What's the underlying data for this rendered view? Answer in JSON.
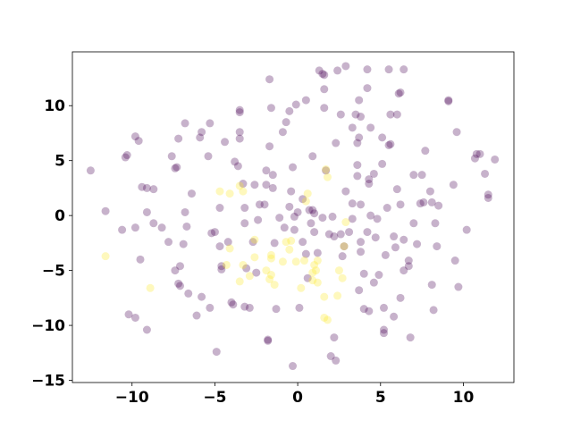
{
  "chart_data": {
    "type": "scatter",
    "xlim": [
      -13.6,
      13.05
    ],
    "ylim": [
      -15.2,
      14.9
    ],
    "xticks": [
      {
        "value": -10,
        "label": "−10"
      },
      {
        "value": -5,
        "label": "−5"
      },
      0,
      5,
      10
    ],
    "yticks": [
      {
        "value": -15,
        "label": "−15"
      },
      {
        "value": -10,
        "label": "−10"
      },
      {
        "value": -5,
        "label": "−5"
      },
      0,
      5,
      10
    ],
    "grid": false,
    "opacity": 0.3,
    "series": [
      {
        "color": "#440154",
        "x": [
          -12.5,
          -11.6,
          -10.6,
          -10.4,
          -10.3,
          -10.2,
          -9.8,
          -9.8,
          -9.8,
          -9.6,
          -9.5,
          -9.4,
          -9.1,
          -9.1,
          -9.1,
          -8.7,
          -8.7,
          -8.2,
          -7.8,
          -7.6,
          -7.4,
          -7.4,
          -7.3,
          -7.2,
          -7.1,
          -7.1,
          -7.2,
          -6.9,
          -6.8,
          -6.7,
          -6.8,
          -6.6,
          -6.4,
          -6.1,
          -5.9,
          -5.8,
          -5.8,
          -5.3,
          -5.4,
          -5.3,
          -5.2,
          -5.0,
          -4.9,
          -4.7,
          -4.6,
          -4.6,
          -4.7,
          -4.4,
          -4.2,
          -4.0,
          -3.9,
          -3.8,
          -3.6,
          -3.5,
          -3.5,
          -3.5,
          -3.5,
          -3.2,
          -3.2,
          -3.3,
          -3.2,
          -3.1,
          -2.9,
          -2.7,
          -2.6,
          -2.5,
          -2.4,
          -2.3,
          -2.0,
          -1.9,
          -1.9,
          -1.8,
          -1.8,
          -1.7,
          -1.7,
          -1.5,
          -1.5,
          -1.6,
          -1.4,
          -1.3,
          -1.1,
          -0.9,
          -0.8,
          -0.7,
          -0.5,
          -0.5,
          -0.4,
          -0.3,
          -0.2,
          -0.2,
          -0.1,
          0,
          0.1,
          -0.3,
          0.3,
          0.3,
          0.5,
          0.5,
          0.6,
          0.7,
          0.8,
          0.9,
          0.9,
          1.0,
          1.0,
          1.2,
          1.3,
          1.5,
          1.6,
          1.6,
          1.6,
          1.5,
          1.7,
          1.9,
          2.0,
          2.2,
          2.2,
          2.3,
          2.1,
          2.3,
          2.4,
          2.6,
          2.6,
          2.7,
          2.8,
          2.9,
          2.9,
          3.1,
          3.3,
          3.3,
          3.5,
          3.7,
          3.7,
          3.6,
          3.6,
          3.6,
          3.3,
          3.8,
          3.7,
          3.8,
          3.8,
          3.8,
          4.0,
          4.0,
          4.2,
          4.2,
          4.2,
          4.3,
          4.3,
          4.3,
          4.4,
          4.4,
          4.6,
          4.6,
          4.7,
          4.8,
          4.9,
          5.1,
          5.1,
          5.2,
          5.2,
          5.2,
          5.3,
          5.5,
          5.5,
          5.6,
          5.6,
          5.4,
          5.8,
          5.8,
          5.9,
          6.0,
          6.0,
          6.1,
          6.2,
          6.2,
          6.2,
          6.4,
          6.4,
          6.4,
          6.7,
          6.7,
          6.8,
          7.0,
          7.0,
          7.2,
          7.4,
          7.5,
          7.6,
          7.7,
          8.0,
          8.1,
          8.1,
          8.2,
          8.3,
          8.4,
          8.5,
          9.1,
          9.1,
          9.4,
          9.5,
          9.6,
          9.7,
          10.2,
          10.7,
          10.8,
          11.0,
          11.3,
          11.5,
          11.5,
          11.9
        ],
        "values": [
          4.1,
          0.4,
          -1.3,
          5.3,
          5.5,
          -9.0,
          -9.3,
          -1.1,
          7.2,
          6.8,
          -4.0,
          2.6,
          -10.4,
          0.3,
          2.5,
          2.4,
          -0.7,
          -1.1,
          -2.4,
          5.4,
          -5.0,
          4.3,
          4.4,
          -6.2,
          -6.4,
          -4.6,
          7.0,
          -2.6,
          0.3,
          -1.0,
          8.4,
          -7.1,
          2.0,
          -9.1,
          7.1,
          7.6,
          -7.4,
          8.4,
          5.4,
          -8.4,
          -1.6,
          -1.5,
          -12.4,
          0.7,
          -4.6,
          -4.9,
          -2.8,
          6.7,
          -2.4,
          -7.9,
          -8.1,
          4.9,
          4.5,
          7.0,
          9.4,
          9.6,
          7.6,
          0.7,
          -0.7,
          2.9,
          -8.3,
          -4.8,
          -8.4,
          -2.4,
          2.8,
          -5.2,
          -0.4,
          1.0,
          1.0,
          2.8,
          4.1,
          -11.4,
          -11.3,
          12.4,
          6.3,
          3.7,
          2.5,
          9.8,
          -2.5,
          -8.5,
          -0.2,
          7.6,
          -1.1,
          8.5,
          0.8,
          9.5,
          2.2,
          4.4,
          -0.1,
          -1.3,
          10.1,
          0.3,
          -8.4,
          -13.7,
          -2.4,
          1.5,
          -3.5,
          10.5,
          -5.7,
          0.5,
          -0.7,
          0.5,
          5.4,
          -1.5,
          0.2,
          -3.4,
          13.2,
          12.9,
          11.5,
          12.8,
          9.8,
          -0.2,
          4.1,
          -1.7,
          -12.8,
          -11.1,
          -1.9,
          -13.2,
          -0.1,
          6.6,
          13.2,
          9.2,
          -1.7,
          -3.7,
          -2.8,
          2.2,
          13.6,
          -1.5,
          -0.3,
          8.0,
          9.2,
          10.5,
          7.1,
          6.6,
          4.6,
          3.6,
          1.1,
          1.0,
          -6.8,
          -3.3,
          -2.4,
          9.0,
          -5.3,
          -8.5,
          13.3,
          11.6,
          -1.5,
          2.9,
          -8.7,
          3.3,
          8.0,
          0,
          3.8,
          -6.1,
          -2.0,
          -0.3,
          -5.4,
          7.1,
          4.7,
          -10.7,
          -10.4,
          -8.4,
          -3.6,
          6.4,
          13.3,
          6.5,
          9.2,
          0.7,
          -1.9,
          -9.2,
          -2.9,
          2.4,
          9.2,
          11.1,
          11.2,
          1.0,
          -7.5,
          -2.2,
          13.3,
          -5.0,
          -4.6,
          -4.1,
          -11.1,
          -0.7,
          3.7,
          -2.6,
          1.1,
          3.7,
          1.2,
          5.9,
          2.2,
          -6.3,
          1.2,
          -8.6,
          -0.7,
          -2.8,
          0.9,
          10.4,
          10.5,
          2.8,
          -4.1,
          7.6,
          -6.5,
          -1.3,
          5.2,
          5.6,
          5.6,
          3.8,
          1.9,
          1.6,
          5.1
        ]
      },
      {
        "color": "#fde725",
        "x": [
          -11.6,
          -8.9,
          -4.7,
          -4.1,
          -3.5,
          -3.3,
          -4.3,
          -4.1,
          -3.5,
          -3.3,
          -2.9,
          -2.6,
          -2.6,
          -1.9,
          -1.6,
          -1.6,
          -1.7,
          -1.6,
          -1.4,
          -0.9,
          -0.7,
          -0.5,
          -0.4,
          -0.1,
          0.2,
          0.5,
          0.6,
          0.4,
          1.0,
          1.1,
          0.9,
          1.2,
          0.9,
          1.2,
          1.6,
          1.7,
          1.8,
          1.8,
          1.6,
          2.4,
          2.5,
          2.7,
          2.8,
          2.9
        ],
        "values": [
          -3.7,
          -6.6,
          2.2,
          2.0,
          2.7,
          2.2,
          -4.5,
          -3.0,
          -6.0,
          -4.5,
          -5.5,
          -3.8,
          -2.2,
          -5.0,
          -3.6,
          -5.4,
          -5.8,
          -3.9,
          -6.3,
          -4.2,
          -2.4,
          -3.1,
          -2.3,
          -4.2,
          -6.6,
          1.3,
          2.0,
          -4.1,
          -4.5,
          -5.0,
          -5.9,
          -6.1,
          -5.2,
          -4.1,
          -7.4,
          4.2,
          3.5,
          -9.5,
          -9.3,
          -7.3,
          -5.0,
          -5.7,
          -2.8,
          -0.6
        ]
      }
    ]
  }
}
